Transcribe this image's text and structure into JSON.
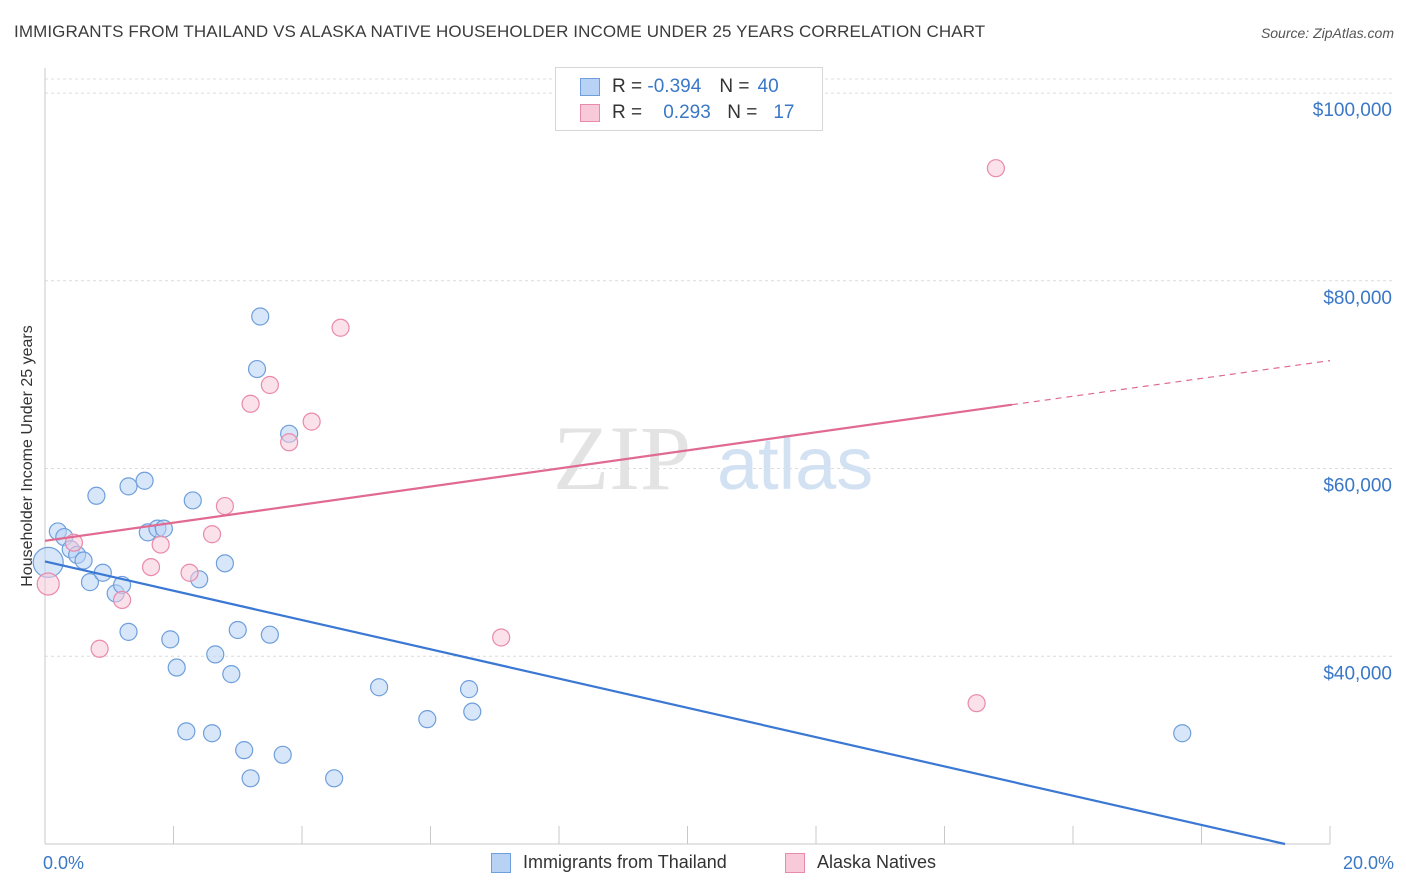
{
  "title": "IMMIGRANTS FROM THAILAND VS ALASKA NATIVE HOUSEHOLDER INCOME UNDER 25 YEARS CORRELATION CHART",
  "source": "Source: ZipAtlas.com",
  "watermark": {
    "zip": "ZIP",
    "atlas": "atlas"
  },
  "legend": {
    "r_label": "R =",
    "n_label": "N =",
    "rows": [
      {
        "r": "-0.394",
        "n": "40",
        "fill": "#b8d2f5",
        "stroke": "#6e9fdb"
      },
      {
        "r": "0.293",
        "n": "17",
        "fill": "#f8c9d8",
        "stroke": "#e98aa9"
      }
    ]
  },
  "bottom_legend": [
    {
      "label": "Immigrants from Thailand",
      "fill": "#b8d2f5",
      "stroke": "#6e9fdb"
    },
    {
      "label": "Alaska Natives",
      "fill": "#f8c9d8",
      "stroke": "#e98aa9"
    }
  ],
  "chart_data": {
    "type": "scatter",
    "title": "IMMIGRANTS FROM THAILAND VS ALASKA NATIVE HOUSEHOLDER INCOME UNDER 25 YEARS CORRELATION CHART",
    "xlabel": "",
    "ylabel": "Householder Income Under 25 years",
    "xlim": [
      0,
      20
    ],
    "ylim": [
      20000,
      101500
    ],
    "x_tick_labels": [
      "0.0%",
      "20.0%"
    ],
    "y_ticks": [
      40000,
      60000,
      80000,
      100000
    ],
    "y_tick_labels": [
      "$40,000",
      "$60,000",
      "$80,000",
      "$100,000"
    ],
    "grid": true,
    "series": [
      {
        "name": "Immigrants from Thailand",
        "color": "#3a78d4",
        "fill": "#b8d2f5",
        "stroke": "#6e9fdb",
        "points": [
          [
            0.05,
            50000
          ],
          [
            0.2,
            53300
          ],
          [
            0.3,
            52700
          ],
          [
            0.4,
            51400
          ],
          [
            0.5,
            50800
          ],
          [
            0.6,
            50200
          ],
          [
            0.7,
            47900
          ],
          [
            0.8,
            57100
          ],
          [
            0.9,
            48900
          ],
          [
            1.1,
            46700
          ],
          [
            1.2,
            47600
          ],
          [
            1.3,
            42600
          ],
          [
            1.3,
            58100
          ],
          [
            1.55,
            58700
          ],
          [
            1.6,
            53200
          ],
          [
            1.75,
            53600
          ],
          [
            1.85,
            53600
          ],
          [
            1.95,
            41800
          ],
          [
            2.05,
            38800
          ],
          [
            2.2,
            32000
          ],
          [
            2.3,
            56600
          ],
          [
            2.4,
            48200
          ],
          [
            2.6,
            31800
          ],
          [
            2.65,
            40200
          ],
          [
            2.8,
            49900
          ],
          [
            2.9,
            38100
          ],
          [
            3.0,
            42800
          ],
          [
            3.1,
            30000
          ],
          [
            3.2,
            27000
          ],
          [
            3.3,
            70600
          ],
          [
            3.35,
            76200
          ],
          [
            3.5,
            42300
          ],
          [
            3.7,
            29500
          ],
          [
            3.8,
            63700
          ],
          [
            4.5,
            27000
          ],
          [
            5.2,
            36700
          ],
          [
            5.95,
            33300
          ],
          [
            6.6,
            36500
          ],
          [
            6.65,
            34100
          ],
          [
            17.7,
            31800
          ]
        ],
        "trendline": {
          "x": [
            0,
            19.3
          ],
          "y": [
            50100,
            20000
          ]
        }
      },
      {
        "name": "Alaska Natives",
        "color": "#e06a91",
        "fill": "#f8c9d8",
        "stroke": "#e98aa9",
        "points": [
          [
            0.05,
            47700
          ],
          [
            0.45,
            52100
          ],
          [
            0.85,
            40800
          ],
          [
            1.2,
            46000
          ],
          [
            1.65,
            49500
          ],
          [
            1.8,
            51900
          ],
          [
            2.25,
            48900
          ],
          [
            2.6,
            53000
          ],
          [
            2.8,
            56000
          ],
          [
            3.2,
            66900
          ],
          [
            3.5,
            68900
          ],
          [
            3.8,
            62800
          ],
          [
            4.15,
            65000
          ],
          [
            4.6,
            75000
          ],
          [
            7.1,
            42000
          ],
          [
            14.5,
            35000
          ],
          [
            14.8,
            92000
          ]
        ],
        "trendline": {
          "x": [
            0,
            15.05
          ],
          "y": [
            52300,
            66800
          ]
        },
        "trendline_extension": {
          "x": [
            15.05,
            20
          ],
          "y": [
            66800,
            71500
          ]
        }
      }
    ]
  }
}
